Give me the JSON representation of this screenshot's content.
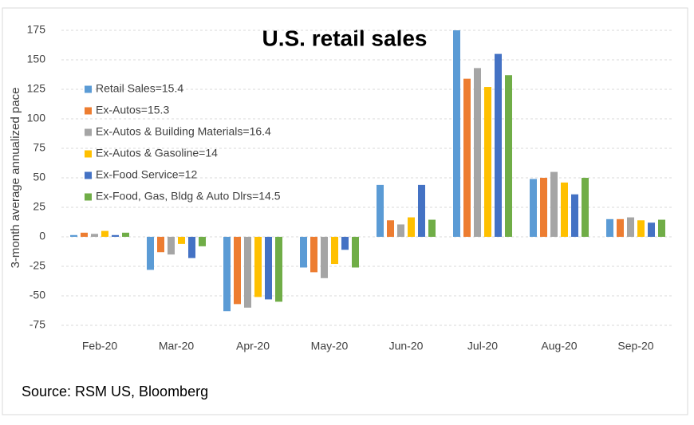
{
  "chart_data": {
    "type": "bar",
    "title": "U.S. retail sales",
    "y_label": "3-month average annualized pace",
    "source": "Source: RSM US, Bloomberg",
    "categories": [
      "Feb-20",
      "Mar-20",
      "Apr-20",
      "May-20",
      "Jun-20",
      "Jul-20",
      "Aug-20",
      "Sep-20"
    ],
    "series": [
      {
        "name": "Retail Sales=15.4",
        "color": "#5B9BD5",
        "values": [
          1.5,
          -28,
          -63,
          -26,
          44,
          175,
          49,
          15
        ]
      },
      {
        "name": "Ex-Autos=15.3",
        "color": "#ED7D31",
        "values": [
          3.5,
          -13,
          -57,
          -30,
          14,
          134,
          50,
          15
        ]
      },
      {
        "name": "Ex-Autos & Building Materials=16.4",
        "color": "#A5A5A5",
        "values": [
          2.5,
          -15,
          -60,
          -35,
          10.5,
          143,
          55,
          16.5
        ]
      },
      {
        "name": "Ex-Autos & Gasoline=14",
        "color": "#FFC000",
        "values": [
          5,
          -6,
          -51,
          -23,
          16.5,
          127,
          46,
          14
        ]
      },
      {
        "name": "Ex-Food Service=12",
        "color": "#4472C4",
        "values": [
          1.5,
          -18,
          -53,
          -11,
          44,
          155,
          36,
          12
        ]
      },
      {
        "name": "Ex-Food, Gas, Bldg & Auto Dlrs=14.5",
        "color": "#70AD47",
        "values": [
          3.5,
          -8,
          -55,
          -26,
          14.5,
          137,
          50,
          14.5
        ]
      }
    ],
    "ylim": [
      -75,
      175
    ],
    "yticks": [
      -75,
      -50,
      -25,
      0,
      25,
      50,
      75,
      100,
      125,
      150,
      175
    ],
    "grid": true
  }
}
